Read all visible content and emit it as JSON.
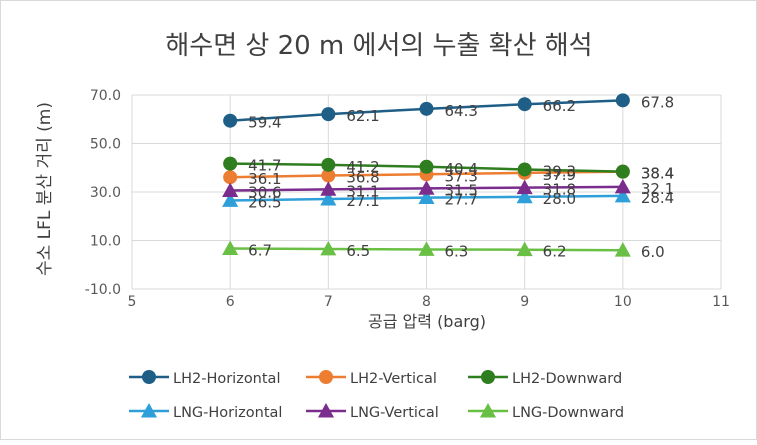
{
  "chart_data": {
    "type": "line",
    "title": "해수면 상 20 m 에서의 누출 확산 해석",
    "xlabel": "공급 압력 (barg)",
    "ylabel": "수소 LFL 분산 거리 (m)",
    "xlim": [
      5,
      11
    ],
    "ylim": [
      -10,
      70
    ],
    "x_ticks": [
      "5",
      "6",
      "7",
      "8",
      "9",
      "10",
      "11"
    ],
    "y_ticks": [
      "-10.0",
      "10.0",
      "30.0",
      "50.0",
      "70.0"
    ],
    "grid": true,
    "legend_position": "bottom",
    "x": [
      6,
      7,
      8,
      9,
      10
    ],
    "series": [
      {
        "name": "LH2-Horizontal",
        "color": "#1f5f87",
        "marker": "circle",
        "values": [
          59.4,
          62.1,
          64.3,
          66.2,
          67.8
        ],
        "labels": [
          "59.4",
          "62.1",
          "64.3",
          "66.2",
          "67.8"
        ]
      },
      {
        "name": "LH2-Vertical",
        "color": "#ed7d31",
        "marker": "circle",
        "values": [
          36.1,
          36.8,
          37.3,
          37.9,
          38.4
        ],
        "labels": [
          "36.1",
          "36.8",
          "37.3",
          "37.9",
          "38.4"
        ]
      },
      {
        "name": "LH2-Downward",
        "color": "#2e7d1f",
        "marker": "circle",
        "values": [
          41.7,
          41.2,
          40.4,
          39.3,
          38.4
        ],
        "labels": [
          "41.7",
          "41.2",
          "40.4",
          "39.3",
          "38.4"
        ]
      },
      {
        "name": "LNG-Horizontal",
        "color": "#2e9fd8",
        "marker": "triangle",
        "values": [
          26.5,
          27.1,
          27.7,
          28.0,
          28.4
        ],
        "labels": [
          "26.5",
          "27.1",
          "27.7",
          "28.0",
          "28.4"
        ]
      },
      {
        "name": "LNG-Vertical",
        "color": "#7b2d8e",
        "marker": "triangle",
        "values": [
          30.6,
          31.1,
          31.5,
          31.8,
          32.1
        ],
        "labels": [
          "30.6",
          "31.1",
          "31.5",
          "31.8",
          "32.1"
        ]
      },
      {
        "name": "LNG-Downward",
        "color": "#6abf45",
        "marker": "triangle",
        "values": [
          6.7,
          6.5,
          6.3,
          6.2,
          6.0
        ],
        "labels": [
          "6.7",
          "6.5",
          "6.3",
          "6.2",
          "6.0"
        ]
      }
    ]
  }
}
